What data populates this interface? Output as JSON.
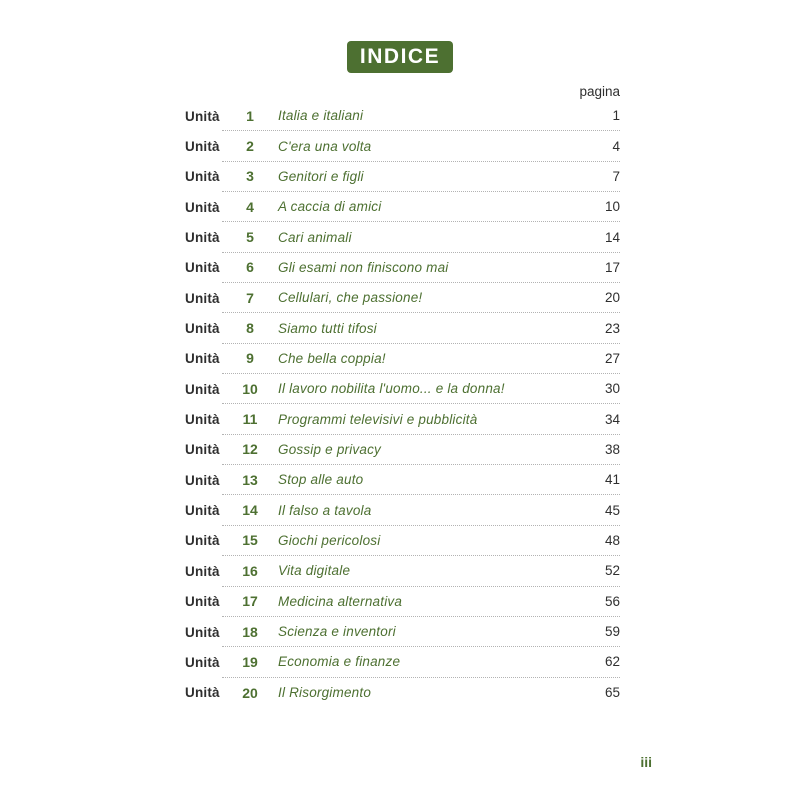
{
  "header": {
    "title": "INDICE"
  },
  "toc": {
    "page_column_label": "pagina",
    "unit_label": "Unità",
    "rows": [
      {
        "n": "1",
        "title": "Italia e italiani",
        "page": "1"
      },
      {
        "n": "2",
        "title": "C'era una volta",
        "page": "4"
      },
      {
        "n": "3",
        "title": "Genitori e figli",
        "page": "7"
      },
      {
        "n": "4",
        "title": "A caccia di amici",
        "page": "10"
      },
      {
        "n": "5",
        "title": "Cari animali",
        "page": "14"
      },
      {
        "n": "6",
        "title": "Gli esami non finiscono mai",
        "page": "17"
      },
      {
        "n": "7",
        "title": "Cellulari, che passione!",
        "page": "20"
      },
      {
        "n": "8",
        "title": "Siamo tutti tifosi",
        "page": "23"
      },
      {
        "n": "9",
        "title": "Che bella coppia!",
        "page": "27"
      },
      {
        "n": "10",
        "title": "Il lavoro nobilita l'uomo... e la donna!",
        "page": "30"
      },
      {
        "n": "11",
        "title": "Programmi televisivi e pubblicità",
        "page": "34"
      },
      {
        "n": "12",
        "title": "Gossip e privacy",
        "page": "38"
      },
      {
        "n": "13",
        "title": "Stop alle auto",
        "page": "41"
      },
      {
        "n": "14",
        "title": "Il falso a tavola",
        "page": "45"
      },
      {
        "n": "15",
        "title": "Giochi pericolosi",
        "page": "48"
      },
      {
        "n": "16",
        "title": "Vita digitale",
        "page": "52"
      },
      {
        "n": "17",
        "title": "Medicina alternativa",
        "page": "56"
      },
      {
        "n": "18",
        "title": "Scienza e inventori",
        "page": "59"
      },
      {
        "n": "19",
        "title": "Economia e finanze",
        "page": "62"
      },
      {
        "n": "20",
        "title": "Il Risorgimento",
        "page": "65"
      }
    ]
  },
  "footer": {
    "page_number": "iii"
  },
  "colors": {
    "accent_green": "#4d7031",
    "text_ink": "#2f2f2f",
    "separator_dots": "#b3b3b3"
  }
}
